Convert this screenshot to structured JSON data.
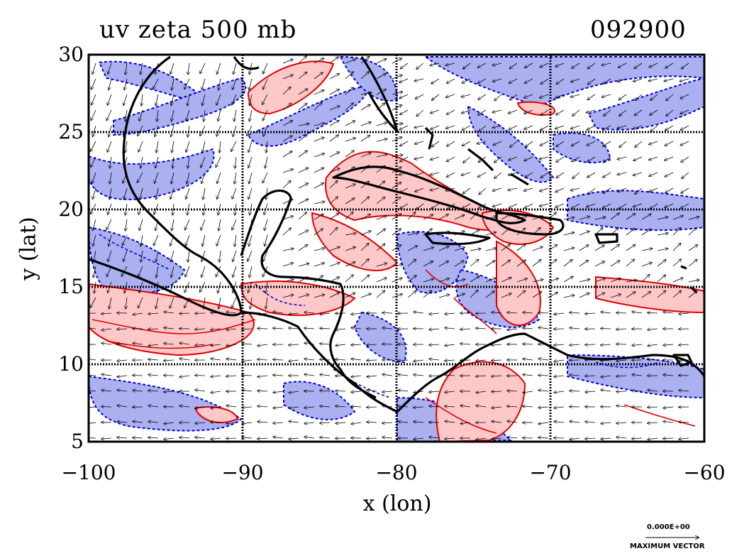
{
  "header": {
    "title": "uv zeta 500 mb",
    "date_code": "092900"
  },
  "chart_data": {
    "type": "map",
    "xlabel": "x (lon)",
    "ylabel": "y (lat)",
    "xlim": [
      -100,
      -60
    ],
    "ylim": [
      5,
      30
    ],
    "x_ticks": [
      -100,
      -90,
      -80,
      -70,
      -60
    ],
    "y_ticks": [
      5,
      10,
      15,
      20,
      25,
      30
    ],
    "x_tick_labels": [
      "−100",
      "−90",
      "−80",
      "−70",
      "−60"
    ],
    "y_tick_labels": [
      "5",
      "10",
      "15",
      "20",
      "25",
      "30"
    ],
    "grid": true,
    "fields": [
      "wind vectors (u, v)",
      "relative vorticity (zeta) contours"
    ],
    "contour_colors": {
      "positive": "#e00000",
      "negative": "#0000dd",
      "positive_fill": "#ffc8c8",
      "negative_fill": "#aab0f0"
    },
    "coastline_color": "#000000",
    "reference_vector": {
      "value": "0.000E+00",
      "label": "MAXIMUM VECTOR"
    }
  }
}
